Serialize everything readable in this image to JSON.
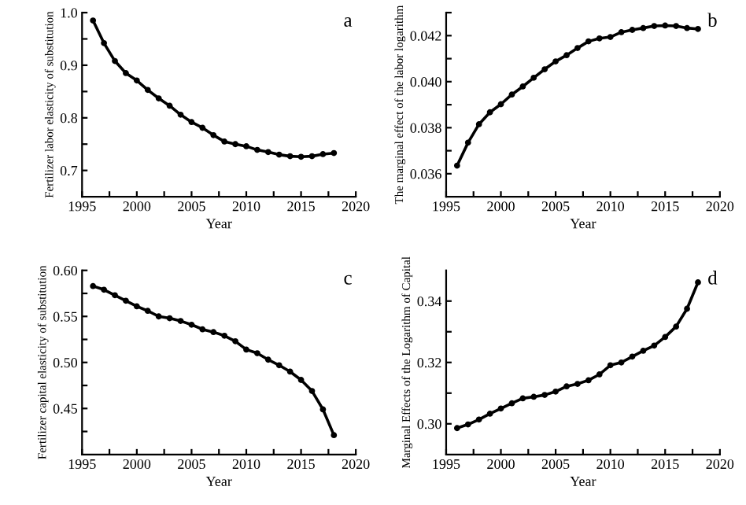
{
  "chart_data": [
    {
      "type": "line",
      "xlabel": "Year",
      "ylabel": "Fertilizer labor elasticity of substitution",
      "annotations": [
        "a"
      ],
      "marker": "circle",
      "line_style": "solid",
      "grid": false,
      "legend": false,
      "x": [
        1996,
        1997,
        1998,
        1999,
        2000,
        2001,
        2002,
        2003,
        2004,
        2005,
        2006,
        2007,
        2008,
        2009,
        2010,
        2011,
        2012,
        2013,
        2014,
        2015,
        2016,
        2017,
        2018
      ],
      "series": [
        {
          "color": "#000000",
          "values": [
            0.985,
            0.942,
            0.908,
            0.885,
            0.871,
            0.853,
            0.837,
            0.823,
            0.806,
            0.792,
            0.781,
            0.767,
            0.755,
            0.75,
            0.746,
            0.739,
            0.735,
            0.73,
            0.727,
            0.726,
            0.727,
            0.731,
            0.733
          ]
        }
      ],
      "xlim": [
        1995,
        2020
      ],
      "xticks": [
        1995,
        {
          "value": 1997.5,
          "label": null
        },
        2000,
        {
          "value": 2002.5,
          "label": null
        },
        2005,
        {
          "value": 2007.5,
          "label": null
        },
        2010,
        {
          "value": 2012.5,
          "label": null
        },
        2015,
        {
          "value": 2017.5,
          "label": null
        },
        2020
      ],
      "ylim": [
        0.65,
        1.0
      ],
      "yticks": [
        0.7,
        {
          "value": 0.75,
          "label": null
        },
        0.8,
        {
          "value": 0.85,
          "label": null
        },
        0.9,
        {
          "value": 0.95,
          "label": null
        },
        {
          "value": 1.0,
          "label": "1.0"
        }
      ]
    },
    {
      "type": "line",
      "xlabel": "Year",
      "ylabel": "The marginal effect of the labor logarithm",
      "annotations": [
        "b"
      ],
      "marker": "circle",
      "line_style": "solid",
      "grid": false,
      "legend": false,
      "x": [
        1996,
        1997,
        1998,
        1999,
        2000,
        2001,
        2002,
        2003,
        2004,
        2005,
        2006,
        2007,
        2008,
        2009,
        2010,
        2011,
        2012,
        2013,
        2014,
        2015,
        2016,
        2017,
        2018
      ],
      "series": [
        {
          "color": "#000000",
          "values": [
            0.03635,
            0.03735,
            0.03815,
            0.03867,
            0.03902,
            0.03944,
            0.03979,
            0.04017,
            0.04054,
            0.04088,
            0.04115,
            0.04146,
            0.04175,
            0.04188,
            0.04194,
            0.04215,
            0.04225,
            0.04233,
            0.04242,
            0.04244,
            0.04242,
            0.04233,
            0.04229
          ]
        }
      ],
      "xlim": [
        1995,
        2020
      ],
      "xticks": [
        1995,
        {
          "value": 1997.5,
          "label": null
        },
        2000,
        {
          "value": 2002.5,
          "label": null
        },
        2005,
        {
          "value": 2007.5,
          "label": null
        },
        2010,
        {
          "value": 2012.5,
          "label": null
        },
        2015,
        {
          "value": 2017.5,
          "label": null
        },
        2020
      ],
      "ylim": [
        0.035,
        0.043
      ],
      "yticks": [
        0.036,
        {
          "value": 0.037,
          "label": null
        },
        0.038,
        {
          "value": 0.039,
          "label": null
        },
        {
          "value": 0.04,
          "label": "0.040"
        },
        {
          "value": 0.041,
          "label": null
        },
        0.042,
        {
          "value": 0.043,
          "label": null
        }
      ]
    },
    {
      "type": "line",
      "xlabel": "Year",
      "ylabel": "Fertilizer capital elasticity of substitution",
      "annotations": [
        "c"
      ],
      "marker": "circle",
      "line_style": "solid",
      "grid": false,
      "legend": false,
      "x": [
        1996,
        1997,
        1998,
        1999,
        2000,
        2001,
        2002,
        2003,
        2004,
        2005,
        2006,
        2007,
        2008,
        2009,
        2010,
        2011,
        2012,
        2013,
        2014,
        2015,
        2016,
        2017,
        2018
      ],
      "series": [
        {
          "color": "#000000",
          "values": [
            0.583,
            0.579,
            0.573,
            0.567,
            0.561,
            0.556,
            0.55,
            0.548,
            0.545,
            0.541,
            0.536,
            0.533,
            0.529,
            0.523,
            0.514,
            0.51,
            0.503,
            0.497,
            0.49,
            0.481,
            0.469,
            0.449,
            0.421
          ]
        }
      ],
      "xlim": [
        1995,
        2020
      ],
      "xticks": [
        1995,
        {
          "value": 1997.5,
          "label": null
        },
        2000,
        {
          "value": 2002.5,
          "label": null
        },
        2005,
        {
          "value": 2007.5,
          "label": null
        },
        2010,
        {
          "value": 2012.5,
          "label": null
        },
        2015,
        {
          "value": 2017.5,
          "label": null
        },
        2020
      ],
      "ylim": [
        0.4,
        0.6
      ],
      "yticks": [
        {
          "value": 0.425,
          "label": null
        },
        0.45,
        {
          "value": 0.475,
          "label": null
        },
        {
          "value": 0.5,
          "label": "0.50"
        },
        {
          "value": 0.525,
          "label": null
        },
        0.55,
        {
          "value": 0.575,
          "label": null
        },
        {
          "value": 0.6,
          "label": "0.60"
        }
      ]
    },
    {
      "type": "line",
      "xlabel": "Year",
      "ylabel": "Marginal Effects of the Logarithm of Capital",
      "annotations": [
        "d"
      ],
      "marker": "circle",
      "line_style": "solid",
      "grid": false,
      "legend": false,
      "x": [
        1996,
        1997,
        1998,
        1999,
        2000,
        2001,
        2002,
        2003,
        2004,
        2005,
        2006,
        2007,
        2008,
        2009,
        2010,
        2011,
        2012,
        2013,
        2014,
        2015,
        2016,
        2017,
        2018
      ],
      "series": [
        {
          "color": "#000000",
          "values": [
            0.2986,
            0.2998,
            0.3014,
            0.3033,
            0.305,
            0.3067,
            0.3083,
            0.3088,
            0.3094,
            0.3105,
            0.3122,
            0.313,
            0.3142,
            0.3161,
            0.3191,
            0.32,
            0.3219,
            0.3238,
            0.3255,
            0.3283,
            0.3317,
            0.3375,
            0.3461
          ]
        }
      ],
      "xlim": [
        1995,
        2020
      ],
      "xticks": [
        1995,
        {
          "value": 1997.5,
          "label": null
        },
        2000,
        {
          "value": 2002.5,
          "label": null
        },
        2005,
        {
          "value": 2007.5,
          "label": null
        },
        2010,
        {
          "value": 2012.5,
          "label": null
        },
        2015,
        {
          "value": 2017.5,
          "label": null
        },
        2020
      ],
      "ylim": [
        0.29,
        0.35
      ],
      "yticks": [
        {
          "value": 0.3,
          "label": "0.30"
        },
        {
          "value": 0.31,
          "label": null
        },
        {
          "value": 0.32,
          "label": "0.32"
        },
        {
          "value": 0.33,
          "label": null
        },
        {
          "value": 0.34,
          "label": "0.34"
        }
      ]
    }
  ]
}
